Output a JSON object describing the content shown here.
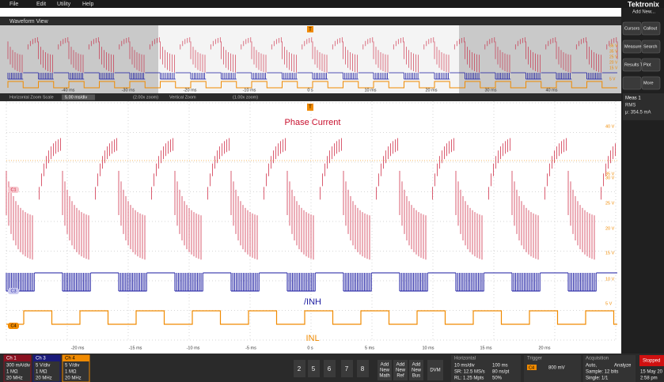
{
  "menu": [
    "File",
    "Edit",
    "Utility",
    "Help"
  ],
  "brand": {
    "logo": "Tektronix",
    "add_new": "Add New..."
  },
  "waveform_view": {
    "title": "Waveform View",
    "overview_time_labels": [
      "-40 ms",
      "-30 ms",
      "-20 ms",
      "-10 ms",
      "0 s",
      "10 ms",
      "20 ms",
      "30 ms",
      "40 ms"
    ],
    "overview_scale_labels": [
      "36 V",
      "35 V",
      "25 V",
      "20 V",
      "15 V",
      "5 V"
    ]
  },
  "zoom_bar": {
    "horizontal_label": "Horizontal Zoom Scale",
    "horizontal_value": "5.00 ms/div",
    "horizontal_zoom": "(2.00x zoom)",
    "vertical_label": "Vertical Zoom",
    "vertical_zoom": "(1.00x zoom)"
  },
  "plot": {
    "phase_label": "Phase Current",
    "inh_label": "/INH",
    "inl_label": "INL",
    "trigger_marker": "T",
    "scale_labels": [
      "40 V",
      "35 V",
      "30 V",
      "25 V",
      "20 V",
      "15 V",
      "10 V",
      "5 V"
    ],
    "channel_badges": [
      "C1",
      "C3",
      "C4"
    ],
    "time_labels": [
      "-20 ms",
      "-15 ms",
      "-10 ms",
      "-5 ms",
      "0 s",
      "5 ms",
      "10 ms",
      "15 ms",
      "20 ms"
    ]
  },
  "side_panel": {
    "buttons": [
      "Cursors",
      "Callout",
      "Measure",
      "Search",
      "Results Table",
      "Plot",
      "More"
    ],
    "meas": {
      "title": "Meas 1",
      "type": "RMS",
      "value": "μ: 354.5 mA"
    }
  },
  "bottom_bar": {
    "channels": [
      {
        "name": "Ch 1",
        "lines": [
          "300 mA/div",
          "1 MΩ",
          "20 MHz"
        ]
      },
      {
        "name": "Ch 3",
        "lines": [
          "5 V/div",
          "1 MΩ",
          "20 MHz"
        ]
      },
      {
        "name": "Ch 4",
        "lines": [
          "5 V/div",
          "1 MΩ",
          "20 MHz"
        ]
      }
    ],
    "ref_buttons": [
      "2",
      "5",
      "6",
      "7",
      "8"
    ],
    "add_buttons": [
      [
        "Add",
        "New",
        "Math"
      ],
      [
        "Add",
        "New",
        "Ref"
      ],
      [
        "Add",
        "New",
        "Bus"
      ]
    ],
    "dvm": "DVM",
    "horizontal": {
      "title": "Horizontal",
      "lines": [
        "10 ms/div",
        "100 ms",
        "SR: 12.5 MS/s",
        "80 ns/pt",
        "RL: 1.25 Mpts",
        "50%"
      ]
    },
    "trigger": {
      "title": "Trigger",
      "source": "C4",
      "level": "800 mV"
    },
    "acquisition": {
      "title": "Acquisition",
      "lines": [
        "Auto,",
        "Analyze",
        "Sample: 12 bits",
        "Single: 1/1"
      ]
    },
    "status": "Stopped",
    "date": "15 May 20",
    "time": "2:58 pm"
  }
}
